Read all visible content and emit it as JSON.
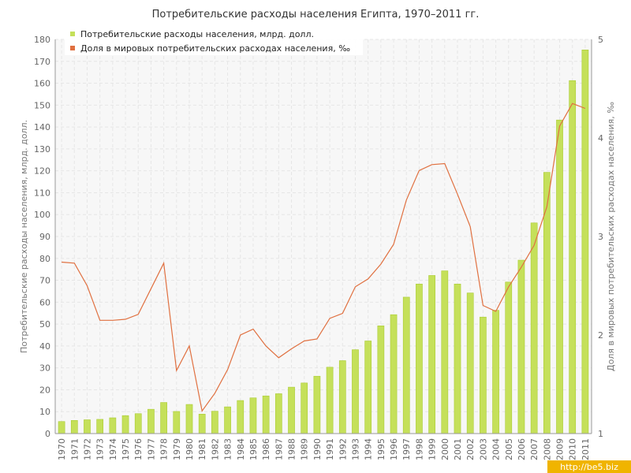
{
  "colors": {
    "bar_fill": "#c5e05a",
    "bar_stroke": "#aacc33",
    "line": "#e07040",
    "grid": "#e6e6e6",
    "plot_bg": "#f7f7f7",
    "watermark_bg": "#f0b400"
  },
  "watermark": "http://be5.biz",
  "chart_data": {
    "type": "bar",
    "title": "Потребительские расходы населения Египта, 1970–2011 гг.",
    "ylabel": "Потребительские расходы населения, млрд. долл.",
    "y2label": "Доля в мировых потребительских расходах населения, ‰",
    "ylim": [
      0,
      180
    ],
    "y2lim": [
      1,
      5
    ],
    "yticks": [
      0,
      10,
      20,
      30,
      40,
      50,
      60,
      70,
      80,
      90,
      100,
      110,
      120,
      130,
      140,
      150,
      160,
      170,
      180
    ],
    "y2ticks": [
      1,
      2,
      3,
      4,
      5
    ],
    "grid": true,
    "legend_position": "top-left",
    "categories": [
      "1970",
      "1971",
      "1972",
      "1973",
      "1974",
      "1975",
      "1976",
      "1977",
      "1978",
      "1979",
      "1980",
      "1981",
      "1982",
      "1983",
      "1984",
      "1985",
      "1986",
      "1987",
      "1988",
      "1989",
      "1990",
      "1991",
      "1992",
      "1993",
      "1994",
      "1995",
      "1996",
      "1997",
      "1998",
      "1999",
      "2000",
      "2001",
      "2002",
      "2003",
      "2004",
      "2005",
      "2006",
      "2007",
      "2008",
      "2009",
      "2010",
      "2011"
    ],
    "series": [
      {
        "name": "Потребительские расходы населения, млрд. долл.",
        "type": "bar",
        "axis": "left",
        "values": [
          5.5,
          6,
          6.3,
          6.5,
          7.2,
          8.2,
          9.1,
          11.1,
          14.2,
          10.1,
          13.3,
          8.9,
          10.2,
          12.2,
          15.1,
          16.3,
          17.2,
          18.2,
          21.2,
          23.1,
          26.2,
          30.3,
          33.3,
          38.3,
          42.3,
          49.2,
          54.3,
          62.3,
          68.3,
          72.2,
          74.3,
          68.3,
          64.2,
          53.2,
          56.3,
          69.2,
          79.2,
          96.2,
          119.3,
          143.2,
          161.2,
          175.2
        ]
      },
      {
        "name": "Доля в мировых потребительских расходах населения, ‰",
        "type": "line",
        "axis": "right",
        "values": [
          2.74,
          2.73,
          2.5,
          2.15,
          2.15,
          2.16,
          2.21,
          2.47,
          2.73,
          1.64,
          1.89,
          1.23,
          1.41,
          1.65,
          2.0,
          2.06,
          1.89,
          1.77,
          1.86,
          1.94,
          1.96,
          2.17,
          2.22,
          2.49,
          2.57,
          2.72,
          2.92,
          3.37,
          3.67,
          3.73,
          3.74,
          3.43,
          3.1,
          2.3,
          2.24,
          2.49,
          2.69,
          2.91,
          3.3,
          4.12,
          4.35,
          4.3
        ]
      }
    ]
  }
}
